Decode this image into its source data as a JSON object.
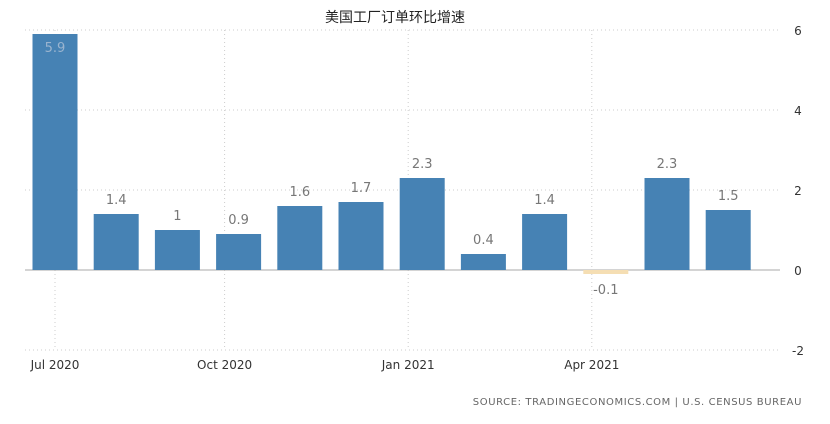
{
  "chart_data": {
    "type": "bar",
    "title": "美国工厂订单环比增速",
    "xlabel": "",
    "ylabel": "",
    "categories": [
      "2020-07",
      "2020-08",
      "2020-09",
      "2020-10",
      "2020-11",
      "2020-12",
      "2021-01",
      "2021-02",
      "2021-03",
      "2021-04",
      "2021-05",
      "2021-06"
    ],
    "values": [
      5.9,
      1.4,
      1,
      0.9,
      1.6,
      1.7,
      2.3,
      0.4,
      1.4,
      -0.1,
      2.3,
      1.5
    ],
    "value_labels": [
      "5.9",
      "1.4",
      "1",
      "0.9",
      "1.6",
      "1.7",
      "2.3",
      "0.4",
      "1.4",
      "-0.1",
      "2.3",
      "1.5"
    ],
    "x_tick_labels": [
      {
        "category": "2020-07",
        "label": "Jul 2020"
      },
      {
        "category": "2020-10",
        "label": "Oct 2020"
      },
      {
        "category": "2021-01",
        "label": "Jan 2021"
      },
      {
        "category": "2021-04",
        "label": "Apr 2021"
      }
    ],
    "y_ticks": [
      6,
      4,
      2,
      0,
      -2
    ],
    "y_tick_labels": [
      "6",
      "4",
      "2",
      "0",
      "-2"
    ],
    "ylim": [
      -2,
      6
    ],
    "y_axis_side": "right",
    "grid": true,
    "legend": "none",
    "colors": {
      "positive_bar": "#4682b4",
      "negative_bar": "#f5deb3",
      "grid": "#cccccc",
      "zero_line": "#aaaaaa",
      "value_label_dark": "#777777",
      "value_label_on_bar": "#9ab4cf",
      "tick_text": "#333333"
    },
    "source": "SOURCE: TRADINGECONOMICS.COM | U.S. CENSUS BUREAU"
  }
}
